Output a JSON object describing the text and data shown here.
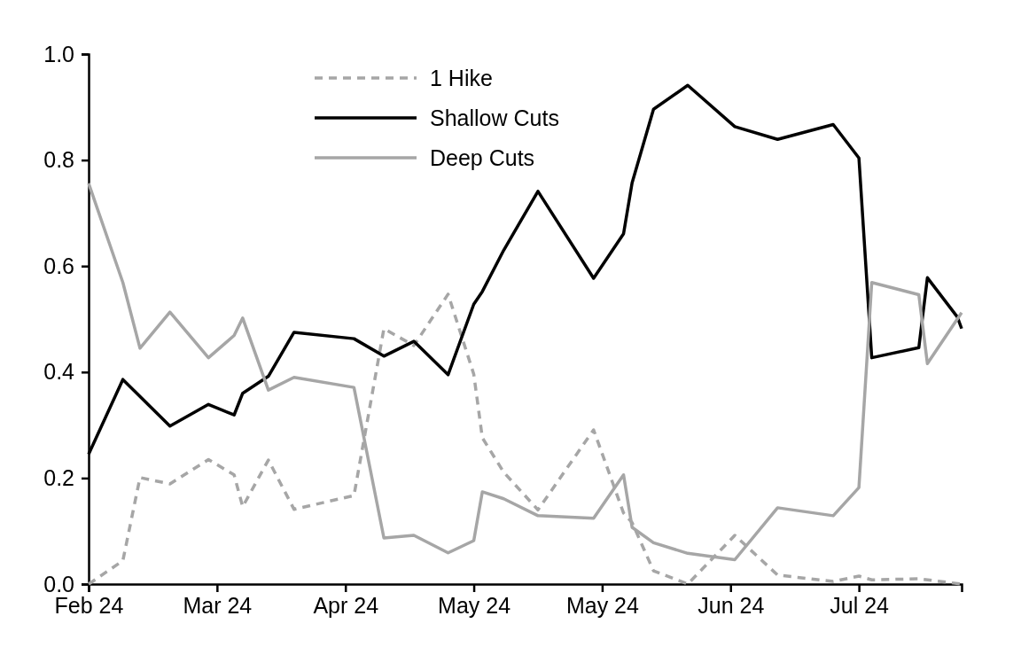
{
  "chart_data": {
    "type": "line",
    "xlim": [
      "2024-02-01",
      "2024-08-23"
    ],
    "ylim": [
      0,
      1
    ],
    "xticks": [
      {
        "value": "2024-02-01",
        "label": "Feb 24"
      },
      {
        "value": "2024-03-02",
        "label": "Mar 24"
      },
      {
        "value": "2024-04-01",
        "label": "Apr 24"
      },
      {
        "value": "2024-05-01",
        "label": "May 24"
      },
      {
        "value": "2024-05-31",
        "label": "May 24"
      },
      {
        "value": "2024-06-30",
        "label": "Jun 24"
      },
      {
        "value": "2024-07-30",
        "label": "Jul 24"
      }
    ],
    "yticks": [
      {
        "value": 0,
        "label": "0.0"
      },
      {
        "value": 0.2,
        "label": "0.2"
      },
      {
        "value": 0.4,
        "label": "0.4"
      },
      {
        "value": 0.6,
        "label": "0.6"
      },
      {
        "value": 0.8,
        "label": "0.8"
      },
      {
        "value": 1,
        "label": "1.0"
      }
    ],
    "grid": false,
    "legend": "top",
    "marker": "none",
    "series": [
      {
        "name": "1 Hike",
        "color": "#a6a6a6",
        "line_style": "dashed",
        "x": [
          "2024-02-01",
          "2024-02-09",
          "2024-02-13",
          "2024-02-20",
          "2024-02-29",
          "2024-03-06",
          "2024-03-08",
          "2024-03-14",
          "2024-03-20",
          "2024-04-03",
          "2024-04-10",
          "2024-04-17",
          "2024-04-25",
          "2024-05-01",
          "2024-05-03",
          "2024-05-08",
          "2024-05-16",
          "2024-05-29",
          "2024-06-05",
          "2024-06-07",
          "2024-06-12",
          "2024-06-20",
          "2024-07-01",
          "2024-07-11",
          "2024-07-24",
          "2024-07-30",
          "2024-08-02",
          "2024-08-13",
          "2024-08-23"
        ],
        "values": [
          0,
          0.044,
          0.201,
          0.189,
          0.235,
          0.206,
          0.146,
          0.234,
          0.141,
          0.167,
          0.482,
          0.45,
          0.547,
          0.396,
          0.276,
          0.211,
          0.14,
          0.291,
          0.134,
          0.116,
          0.025,
          0,
          0.092,
          0.017,
          0.005,
          0.015,
          0.008,
          0.01,
          0
        ]
      },
      {
        "name": "Shallow Cuts",
        "color": "#000000",
        "line_style": "solid",
        "x": [
          "2024-02-01",
          "2024-02-09",
          "2024-02-20",
          "2024-02-29",
          "2024-03-06",
          "2024-03-08",
          "2024-03-14",
          "2024-03-20",
          "2024-04-03",
          "2024-04-10",
          "2024-04-17",
          "2024-04-25",
          "2024-05-01",
          "2024-05-03",
          "2024-05-08",
          "2024-05-16",
          "2024-05-29",
          "2024-06-05",
          "2024-06-07",
          "2024-06-12",
          "2024-06-20",
          "2024-07-01",
          "2024-07-11",
          "2024-07-24",
          "2024-07-30",
          "2024-08-02",
          "2024-08-13",
          "2024-08-15",
          "2024-08-22",
          "2024-08-23"
        ],
        "values": [
          0.245,
          0.386,
          0.298,
          0.339,
          0.319,
          0.36,
          0.392,
          0.475,
          0.463,
          0.43,
          0.458,
          0.395,
          0.528,
          0.552,
          0.63,
          0.741,
          0.577,
          0.661,
          0.757,
          0.896,
          0.941,
          0.863,
          0.839,
          0.867,
          0.804,
          0.427,
          0.446,
          0.578,
          0.504,
          0.482
        ]
      },
      {
        "name": "Deep Cuts",
        "color": "#a6a6a6",
        "line_style": "solid",
        "x": [
          "2024-02-01",
          "2024-02-09",
          "2024-02-13",
          "2024-02-20",
          "2024-02-29",
          "2024-03-06",
          "2024-03-08",
          "2024-03-14",
          "2024-03-20",
          "2024-04-03",
          "2024-04-10",
          "2024-04-17",
          "2024-04-25",
          "2024-05-01",
          "2024-05-03",
          "2024-05-08",
          "2024-05-16",
          "2024-05-29",
          "2024-06-05",
          "2024-06-07",
          "2024-06-12",
          "2024-06-20",
          "2024-07-01",
          "2024-07-11",
          "2024-07-24",
          "2024-07-30",
          "2024-08-02",
          "2024-08-13",
          "2024-08-15",
          "2024-08-23"
        ],
        "values": [
          0.756,
          0.569,
          0.445,
          0.513,
          0.427,
          0.469,
          0.502,
          0.366,
          0.39,
          0.371,
          0.087,
          0.092,
          0.059,
          0.082,
          0.174,
          0.161,
          0.129,
          0.124,
          0.206,
          0.107,
          0.078,
          0.058,
          0.046,
          0.144,
          0.129,
          0.182,
          0.569,
          0.546,
          0.416,
          0.512
        ]
      }
    ]
  }
}
